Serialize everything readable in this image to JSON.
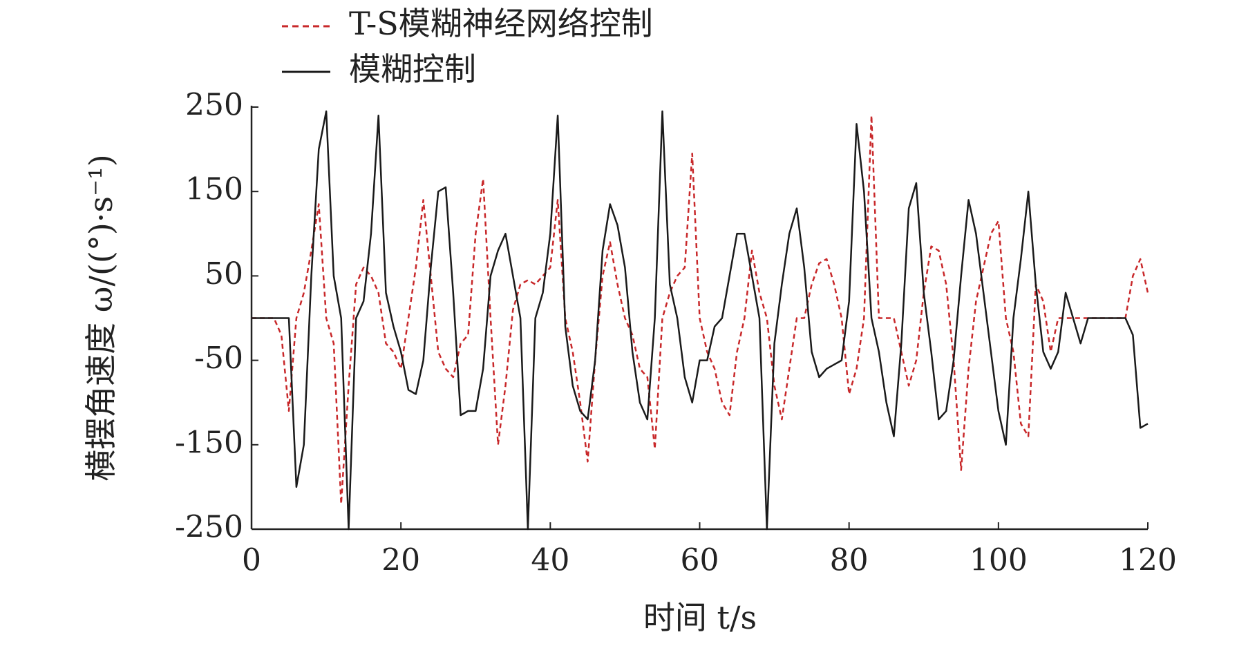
{
  "chart_data": {
    "type": "line",
    "xlabel": "时间 t/s",
    "ylabel": "横摆角速度 ω/((°)·s⁻¹)",
    "xlim": [
      0,
      120
    ],
    "ylim": [
      -250,
      250
    ],
    "xticks": [
      0,
      20,
      40,
      60,
      80,
      100,
      120
    ],
    "yticks": [
      -250,
      -150,
      -50,
      50,
      150,
      250
    ],
    "legend": "top-left",
    "x": [
      0,
      1,
      2,
      3,
      4,
      5,
      6,
      7,
      8,
      9,
      10,
      11,
      12,
      13,
      14,
      15,
      16,
      17,
      18,
      19,
      20,
      21,
      22,
      23,
      24,
      25,
      26,
      27,
      28,
      29,
      30,
      31,
      32,
      33,
      34,
      35,
      36,
      37,
      38,
      39,
      40,
      41,
      42,
      43,
      44,
      45,
      46,
      47,
      48,
      49,
      50,
      51,
      52,
      53,
      54,
      55,
      56,
      57,
      58,
      59,
      60,
      61,
      62,
      63,
      64,
      65,
      66,
      67,
      68,
      69,
      70,
      71,
      72,
      73,
      74,
      75,
      76,
      77,
      78,
      79,
      80,
      81,
      82,
      83,
      84,
      85,
      86,
      87,
      88,
      89,
      90,
      91,
      92,
      93,
      94,
      95,
      96,
      97,
      98,
      99,
      100,
      101,
      102,
      103,
      104,
      105,
      106,
      107,
      108,
      109,
      110,
      111,
      112,
      113,
      114,
      115,
      116,
      117,
      118,
      119,
      120
    ],
    "series": [
      {
        "name": "T-S模糊神经网络控制",
        "color": "#c8282a",
        "dash": true,
        "values": [
          0,
          0,
          0,
          0,
          -20,
          -110,
          0,
          30,
          80,
          135,
          0,
          -30,
          -220,
          -80,
          40,
          60,
          50,
          30,
          -30,
          -40,
          -60,
          0,
          60,
          140,
          50,
          -40,
          -60,
          -70,
          -30,
          -20,
          100,
          165,
          0,
          -150,
          -80,
          10,
          40,
          45,
          40,
          50,
          60,
          140,
          0,
          -40,
          -100,
          -170,
          -50,
          50,
          90,
          40,
          0,
          -20,
          -60,
          -70,
          -155,
          0,
          30,
          50,
          60,
          195,
          0,
          -40,
          -60,
          -100,
          -115,
          -40,
          0,
          80,
          30,
          0,
          -80,
          -120,
          -60,
          0,
          0,
          40,
          65,
          70,
          40,
          0,
          -90,
          -60,
          0,
          240,
          0,
          0,
          0,
          -40,
          -80,
          -50,
          30,
          85,
          80,
          40,
          -50,
          -180,
          -60,
          20,
          60,
          100,
          115,
          0,
          -40,
          -125,
          -140,
          40,
          20,
          -40,
          0,
          0,
          0,
          0,
          0,
          0,
          0,
          0,
          0,
          0,
          50,
          70,
          30
        ]
      },
      {
        "name": "模糊控制",
        "color": "#1a1a1a",
        "dash": false,
        "values": [
          0,
          0,
          0,
          0,
          0,
          0,
          -200,
          -150,
          50,
          200,
          245,
          50,
          0,
          -250,
          0,
          20,
          100,
          240,
          30,
          -10,
          -40,
          -85,
          -90,
          -50,
          60,
          150,
          155,
          30,
          -115,
          -110,
          -110,
          -60,
          50,
          80,
          100,
          50,
          0,
          -250,
          0,
          30,
          100,
          240,
          -10,
          -80,
          -110,
          -120,
          -50,
          80,
          135,
          110,
          60,
          -40,
          -100,
          -120,
          0,
          245,
          40,
          0,
          -70,
          -100,
          -50,
          -50,
          -10,
          0,
          50,
          100,
          100,
          50,
          0,
          -250,
          -30,
          40,
          100,
          130,
          60,
          -40,
          -70,
          -60,
          -55,
          -50,
          20,
          230,
          150,
          0,
          -40,
          -100,
          -140,
          -30,
          130,
          160,
          30,
          -40,
          -120,
          -110,
          -50,
          50,
          140,
          100,
          30,
          -40,
          -110,
          -150,
          0,
          70,
          150,
          40,
          -40,
          -60,
          -40,
          30,
          0,
          -30,
          0,
          0,
          0,
          0,
          0,
          0,
          -20,
          -130,
          -125
        ]
      }
    ]
  }
}
